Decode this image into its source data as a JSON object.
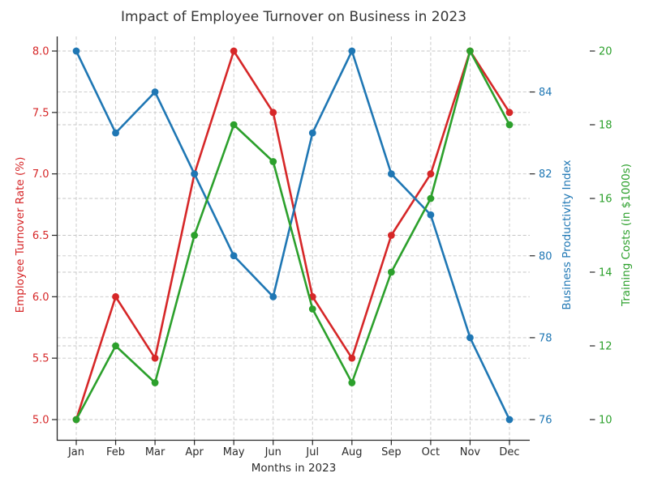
{
  "chart_data": {
    "type": "line",
    "title": "Impact of Employee Turnover on Business in 2023",
    "background": "#ffffff",
    "grid": true,
    "legend": "none",
    "x_axis": {
      "label": "Months in 2023",
      "categories": [
        "Jan",
        "Feb",
        "Mar",
        "Apr",
        "May",
        "Jun",
        "Jul",
        "Aug",
        "Sep",
        "Oct",
        "Nov",
        "Dec"
      ]
    },
    "axes": {
      "left": {
        "label": "Employee Turnover Rate (%)",
        "color": "#d62728",
        "range": [
          5.0,
          8.0
        ],
        "tick_values": [
          5.0,
          5.5,
          6.0,
          6.5,
          7.0,
          7.5,
          8.0
        ],
        "tick_labels": [
          "5.0",
          "5.5",
          "6.0",
          "6.5",
          "7.0",
          "7.5",
          "8.0"
        ]
      },
      "right_inner": {
        "label": "Business Productivity Index",
        "color": "#1f77b4",
        "range": [
          76,
          85
        ],
        "tick_values": [
          76,
          78,
          80,
          82,
          84
        ],
        "tick_labels": [
          "76",
          "78",
          "80",
          "82",
          "84"
        ]
      },
      "right_outer": {
        "label": "Training Costs (in $1000s)",
        "color": "#2ca02c",
        "range": [
          10,
          20
        ],
        "tick_values": [
          10,
          12,
          14,
          16,
          18,
          20
        ],
        "tick_labels": [
          "10",
          "12",
          "14",
          "16",
          "18",
          "20"
        ]
      }
    },
    "series": [
      {
        "id": "turnover",
        "name": "Employee Turnover Rate (%)",
        "axis": "left",
        "color": "#d62728",
        "marker": "o",
        "values": [
          5.0,
          6.0,
          5.5,
          7.0,
          8.0,
          7.5,
          6.0,
          5.5,
          6.5,
          7.0,
          8.0,
          7.5
        ]
      },
      {
        "id": "productivity",
        "name": "Business Productivity Index",
        "axis": "right_inner",
        "color": "#1f77b4",
        "marker": "o",
        "values": [
          85,
          83,
          84,
          82,
          80,
          79,
          83,
          85,
          82,
          81,
          78,
          76
        ]
      },
      {
        "id": "training",
        "name": "Training Costs (in $1000s)",
        "axis": "right_outer",
        "color": "#2ca02c",
        "marker": "o",
        "values": [
          10,
          12,
          11,
          15,
          18,
          17,
          13,
          11,
          14,
          16,
          20,
          18
        ]
      }
    ]
  }
}
